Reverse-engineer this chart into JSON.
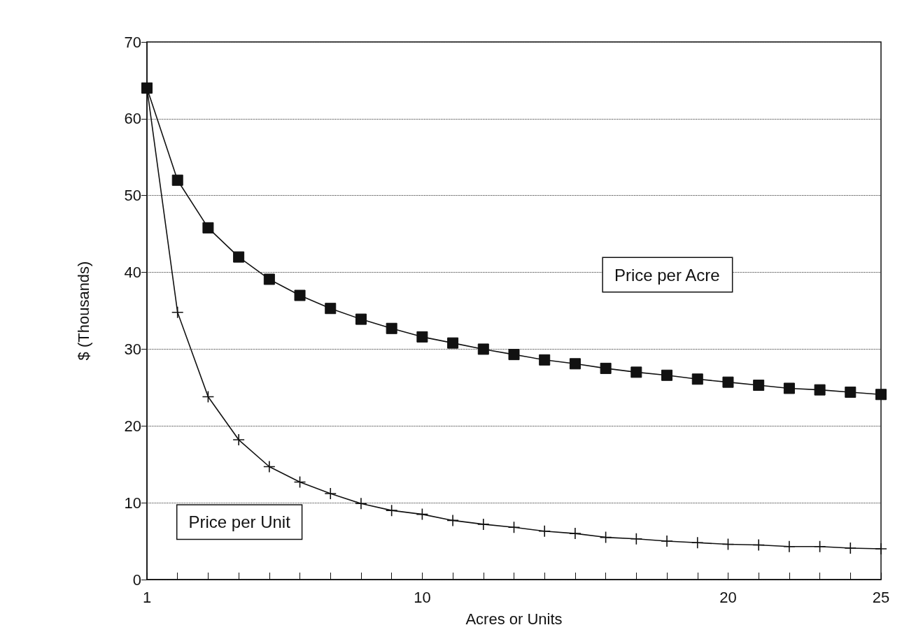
{
  "chart_data": {
    "type": "line",
    "xlabel": "Acres or Units",
    "ylabel": "$ (Thousands)",
    "x": [
      1,
      2,
      3,
      4,
      5,
      6,
      7,
      8,
      9,
      10,
      11,
      12,
      13,
      14,
      15,
      16,
      17,
      18,
      19,
      20,
      21,
      22,
      23,
      24,
      25
    ],
    "series": [
      {
        "name": "Price per Acre",
        "color": "#111111",
        "marker": "square",
        "values": [
          64,
          52,
          45.8,
          42,
          39.1,
          37,
          35.3,
          33.9,
          32.7,
          31.6,
          30.8,
          30,
          29.3,
          28.6,
          28.1,
          27.5,
          27,
          26.6,
          26.1,
          25.7,
          25.3,
          24.9,
          24.7,
          24.4,
          24.1
        ]
      },
      {
        "name": "Price per Unit",
        "color": "#111111",
        "marker": "cross",
        "values": [
          64,
          34.8,
          23.8,
          18.2,
          14.7,
          12.7,
          11.2,
          9.9,
          9,
          8.5,
          7.7,
          7.2,
          6.8,
          6.3,
          6,
          5.5,
          5.3,
          5,
          4.8,
          4.6,
          4.5,
          4.3,
          4.3,
          4.1,
          4
        ]
      }
    ],
    "xlim": [
      1,
      25
    ],
    "xticks": [
      1,
      {
        "value": 2,
        "label": null
      },
      {
        "value": 3,
        "label": null
      },
      {
        "value": 4,
        "label": null
      },
      {
        "value": 5,
        "label": null
      },
      {
        "value": 6,
        "label": null
      },
      {
        "value": 7,
        "label": null
      },
      {
        "value": 8,
        "label": null
      },
      {
        "value": 9,
        "label": null
      },
      10,
      {
        "value": 11,
        "label": null
      },
      {
        "value": 12,
        "label": null
      },
      {
        "value": 13,
        "label": null
      },
      {
        "value": 14,
        "label": null
      },
      {
        "value": 15,
        "label": null
      },
      {
        "value": 16,
        "label": null
      },
      {
        "value": 17,
        "label": null
      },
      {
        "value": 18,
        "label": null
      },
      {
        "value": 19,
        "label": null
      },
      20,
      {
        "value": 21,
        "label": null
      },
      {
        "value": 22,
        "label": null
      },
      {
        "value": 23,
        "label": null
      },
      {
        "value": 24,
        "label": null
      },
      25
    ],
    "ylim": [
      0,
      70
    ],
    "yticks": [
      0,
      10,
      20,
      30,
      40,
      50,
      60,
      70
    ],
    "grid": "y",
    "legend": false,
    "line_style": "solid"
  }
}
